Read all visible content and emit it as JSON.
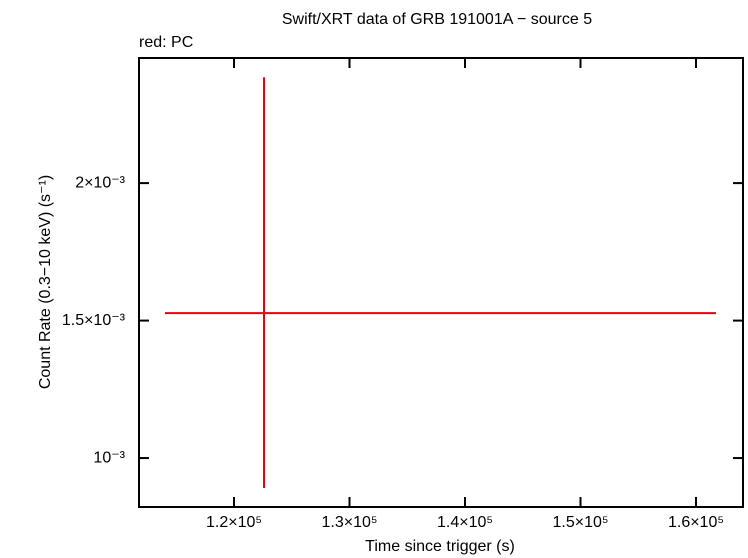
{
  "chart_data": {
    "type": "errorbar",
    "title": "Swift/XRT data of GRB 191001A − source 5",
    "subtitle": "red: PC",
    "x_label": "Time since trigger (s)",
    "y_label": "Count Rate (0.3−10 keV) (s⁻¹)",
    "series": [
      {
        "color": "#e8000b",
        "x": [
          122600
        ],
        "xerr_minus": [
          8574
        ],
        "xerr_plus": [
          39130
        ],
        "values": [
          0.001527
        ],
        "yerr_minus": [
          0.000636
        ],
        "yerr_plus": [
          0.000858
        ]
      }
    ],
    "xlim": [
      111775,
      164070
    ],
    "xticks": [
      {
        "value": 120000,
        "label": "1.2×10⁵"
      },
      {
        "value": 130000,
        "label": "1.3×10⁵"
      },
      {
        "value": 140000,
        "label": "1.4×10⁵"
      },
      {
        "value": 150000,
        "label": "1.5×10⁵"
      },
      {
        "value": 160000,
        "label": "1.6×10⁵"
      }
    ],
    "ylim": [
      0.000822,
      0.002455
    ],
    "yticks": [
      {
        "value": 0.001,
        "label": "10⁻³"
      },
      {
        "value": 0.0015,
        "label": "1.5×10⁻³"
      },
      {
        "value": 0.002,
        "label": "2×10⁻³"
      }
    ]
  }
}
